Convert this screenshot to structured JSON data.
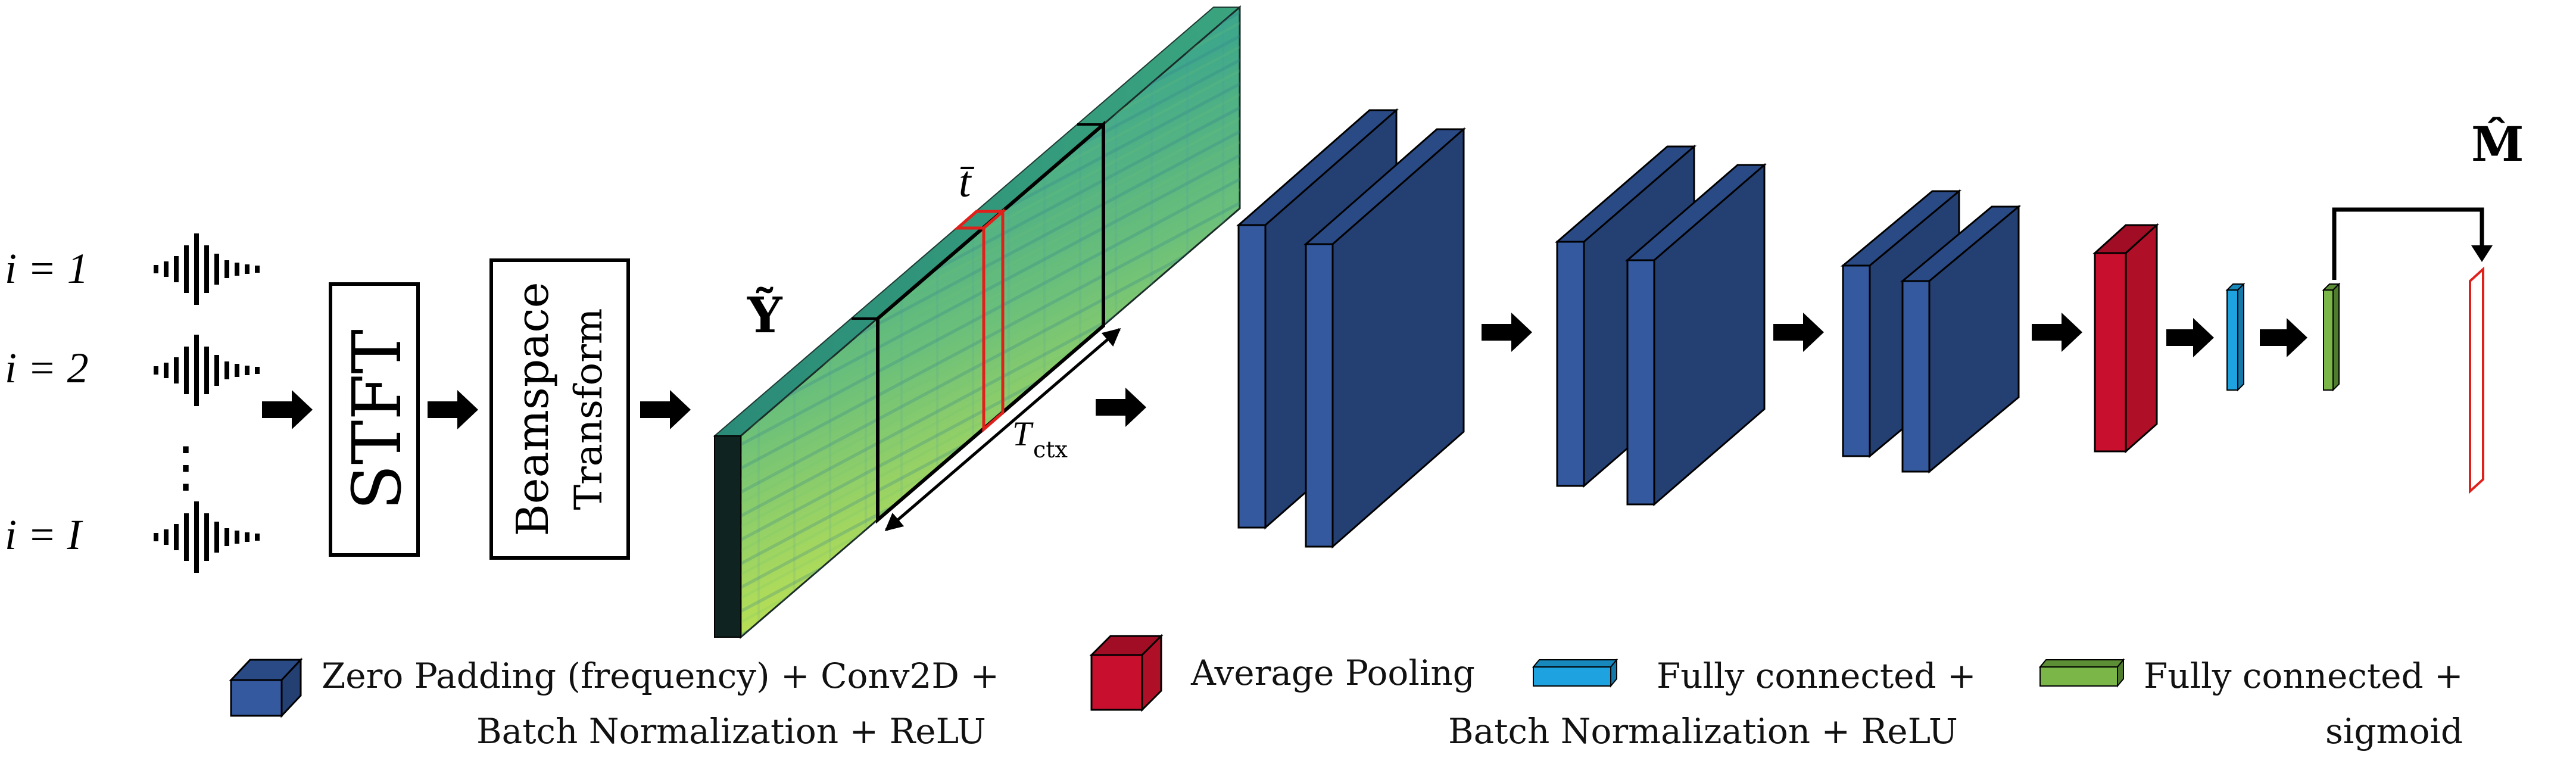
{
  "inputs": {
    "labels": [
      "i = 1",
      "i = 2",
      "i = I"
    ],
    "vdots": "⋮"
  },
  "blocks": {
    "stft": "STFT",
    "beamspace_line1": "Beamspace",
    "beamspace_line2": "Transform"
  },
  "spectrogram": {
    "symbol": "Ỹ",
    "context_label": "T",
    "context_subscript": "ctx",
    "frame_label": "t̄"
  },
  "output": {
    "symbol": "M̂"
  },
  "legend": [
    {
      "lines": [
        "Zero Padding (frequency) + Conv2D +",
        "Batch Normalization + ReLU"
      ],
      "color": "#34599f",
      "icon": "conv-cube-icon"
    },
    {
      "lines": [
        "Average Pooling"
      ],
      "color": "#c8102e",
      "icon": "pool-cube-icon"
    },
    {
      "lines": [
        "Fully connected +",
        "Batch Normalization + ReLU"
      ],
      "color": "#1fa3e0",
      "icon": "fc-bn-bar-icon"
    },
    {
      "lines": [
        "Fully connected +",
        "sigmoid"
      ],
      "color": "#7ab648",
      "icon": "fc-sigmoid-bar-icon"
    }
  ],
  "colors": {
    "conv": "#34599f",
    "conv_top": "#2a4a86",
    "conv_side": "#243f72",
    "pool": "#c8102e",
    "fc_bn": "#1fa3e0",
    "fc_sig": "#7ab648",
    "mask_outline": "#e0201b",
    "spec_low": "#2a8a86",
    "spec_high": "#c9e64a"
  }
}
